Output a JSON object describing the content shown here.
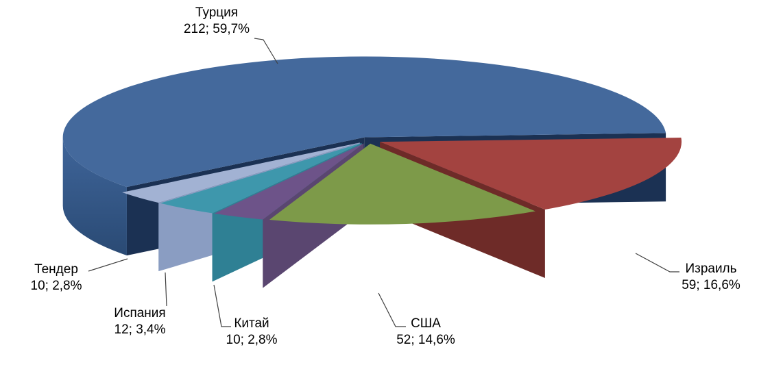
{
  "chart_data": {
    "type": "pie",
    "style": "3d-exploded-pie",
    "title": "",
    "legend": "none",
    "background": "#FFFFFF",
    "direction": "clockwise",
    "start_angle_deg": 232,
    "separator": "; ",
    "data_label_format": "category (line 1), value; percent (line 2), outside with leader lines",
    "label_color": "#000000",
    "leader_line_color": "#3F3F3F",
    "slices": [
      {
        "label": "Турция",
        "value": 212,
        "percent": "59,7%",
        "color": "#44699C",
        "side_light": "#3F659A",
        "side_dark": "#2A4A74",
        "cut": "#1B3153"
      },
      {
        "label": "Израиль",
        "value": 59,
        "percent": "16,6%",
        "color": "#A34340",
        "side_light": "#8A3734",
        "side_dark": "#4C1B1A",
        "cut": "#6E2B28"
      },
      {
        "label": "США",
        "value": 52,
        "percent": "14,6%",
        "color": "#7D9A49",
        "side_light": "#74904A",
        "side_dark": "#40551D",
        "cut": "#4E6527"
      },
      {
        "label": "Китай",
        "value": 10,
        "percent": "2,8%",
        "color": "#6D5389",
        "side_light": "#634D7C",
        "side_dark": "#473661",
        "cut": "#5A4670"
      },
      {
        "label": "Испания",
        "value": 12,
        "percent": "3,4%",
        "color": "#3E97AC",
        "side_light": "#3990A4",
        "side_dark": "#266B80",
        "cut": "#2F8094"
      },
      {
        "label": "Тендер",
        "value": 10,
        "percent": "2,8%",
        "color": "#A2B2D3",
        "side_light": "#96A8CA",
        "side_dark": "#7288B1",
        "cut": "#8A9DC2"
      }
    ]
  }
}
